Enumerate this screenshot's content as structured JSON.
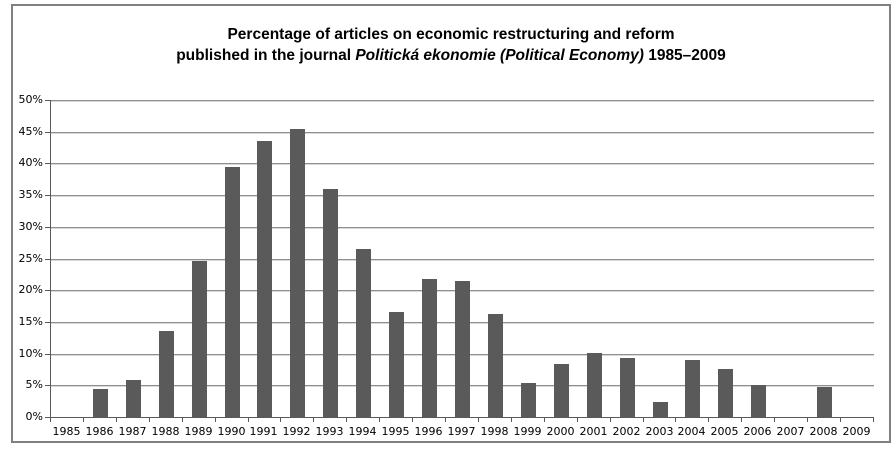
{
  "title": {
    "line1": "Percentage of articles on economic restructuring and reform",
    "line2_prefix": "published in the journal ",
    "line2_italic": "Politická ekonomie (Political Economy)",
    "line2_suffix": " 1985–2009"
  },
  "chart_data": {
    "type": "bar",
    "title": "Percentage of articles on economic restructuring and reform published in the journal Politická ekonomie (Political Economy) 1985–2009",
    "categories": [
      "1985",
      "1986",
      "1987",
      "1988",
      "1989",
      "1990",
      "1991",
      "1992",
      "1993",
      "1994",
      "1995",
      "1996",
      "1997",
      "1998",
      "1999",
      "2000",
      "2001",
      "2002",
      "2003",
      "2004",
      "2005",
      "2006",
      "2007",
      "2008",
      "2009"
    ],
    "values": [
      0,
      4.4,
      5.8,
      13.5,
      24.6,
      39.4,
      43.5,
      45.4,
      36.0,
      26.5,
      16.5,
      21.8,
      21.5,
      16.2,
      5.3,
      8.3,
      10.1,
      9.3,
      2.4,
      9.0,
      7.5,
      5.0,
      0,
      4.7,
      0
    ],
    "xlabel": "",
    "ylabel": "",
    "ylim": [
      0,
      50
    ],
    "ytick_step": 5,
    "ytick_labels": [
      "0%",
      "5%",
      "10%",
      "15%",
      "20%",
      "25%",
      "30%",
      "35%",
      "40%",
      "45%",
      "50%"
    ],
    "grid": true,
    "legend": "none",
    "colors": {
      "bar": "#5a5a5a",
      "gridline": "#8f8f8f",
      "axis": "#595959",
      "frame_border": "#808080",
      "text": "#000000",
      "background": "#ffffff"
    }
  }
}
